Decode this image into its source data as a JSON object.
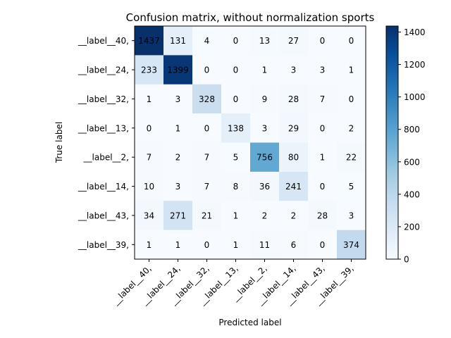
{
  "chart_data": {
    "type": "heatmap",
    "title": "Confusion matrix, without normalization sports",
    "xlabel": "Predicted label",
    "ylabel": "True label",
    "row_labels": [
      "__label__40,",
      "__label__24,",
      "__label__32,",
      "__label__13,",
      "__label__2,",
      "__label__14,",
      "__label__43,",
      "__label__39,"
    ],
    "col_labels": [
      "__label__40,",
      "__label__24,",
      "__label__32,",
      "__label__13,",
      "__label__2,",
      "__label__14,",
      "__label__43,",
      "__label__39,"
    ],
    "values": [
      [
        1437,
        131,
        4,
        0,
        13,
        27,
        0,
        0
      ],
      [
        233,
        1399,
        0,
        0,
        1,
        3,
        3,
        1
      ],
      [
        1,
        3,
        328,
        0,
        9,
        28,
        7,
        0
      ],
      [
        0,
        1,
        0,
        138,
        3,
        29,
        0,
        2
      ],
      [
        7,
        2,
        7,
        5,
        756,
        80,
        1,
        22
      ],
      [
        10,
        3,
        7,
        8,
        36,
        241,
        0,
        5
      ],
      [
        34,
        271,
        21,
        1,
        2,
        2,
        28,
        3
      ],
      [
        1,
        1,
        0,
        1,
        11,
        6,
        0,
        374
      ]
    ],
    "colormap": "Blues",
    "value_range": [
      0,
      1437
    ],
    "colorbar_ticks": [
      0,
      200,
      400,
      600,
      800,
      1000,
      1200,
      1400
    ]
  }
}
